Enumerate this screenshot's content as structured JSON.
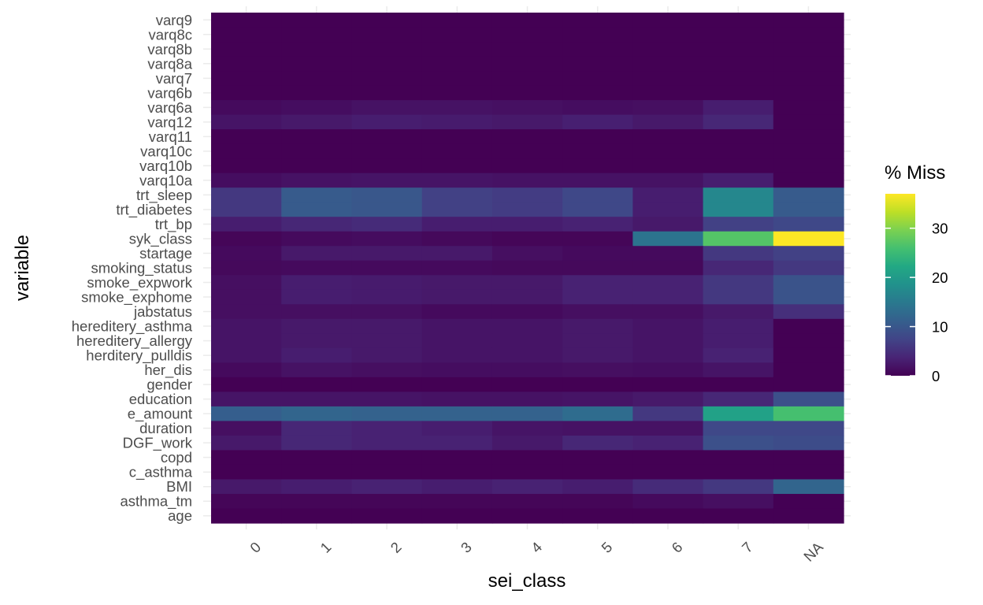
{
  "chart_data": {
    "type": "heatmap",
    "xlabel": "sei_class",
    "ylabel": "variable",
    "x_categories": [
      "0",
      "1",
      "2",
      "3",
      "4",
      "5",
      "6",
      "7",
      "NA"
    ],
    "y_categories": [
      "varq9",
      "varq8c",
      "varq8b",
      "varq8a",
      "varq7",
      "varq6b",
      "varq6a",
      "varq12",
      "varq11",
      "varq10c",
      "varq10b",
      "varq10a",
      "trt_sleep",
      "trt_diabetes",
      "trt_bp",
      "syk_class",
      "startage",
      "smoking_status",
      "smoke_expwork",
      "smoke_exphome",
      "jabstatus",
      "hereditery_asthma",
      "hereditery_allergy",
      "herditery_pulldis",
      "her_dis",
      "gender",
      "education",
      "e_amount",
      "duration",
      "DGF_work",
      "copd",
      "c_asthma",
      "BMI",
      "asthma_tm",
      "age"
    ],
    "values": [
      [
        0,
        0,
        0,
        0,
        0,
        0,
        0,
        0,
        0
      ],
      [
        0,
        0,
        0,
        0,
        0,
        0,
        0,
        0,
        0
      ],
      [
        0,
        0,
        0,
        0,
        0,
        0,
        0,
        0,
        0
      ],
      [
        0,
        0,
        0,
        0,
        0,
        0,
        0,
        0,
        0
      ],
      [
        0,
        0,
        0,
        0,
        0,
        0,
        0,
        0,
        0
      ],
      [
        0,
        0,
        0,
        0,
        0,
        0,
        0,
        0,
        0
      ],
      [
        1,
        1.3,
        1.8,
        1.8,
        1.6,
        1.3,
        1.5,
        3,
        0
      ],
      [
        2,
        2.5,
        3,
        2.8,
        2.5,
        3.2,
        2.5,
        4,
        0
      ],
      [
        0,
        0,
        0,
        0,
        0,
        0,
        0,
        0,
        0
      ],
      [
        0,
        0,
        0,
        0,
        0,
        0,
        0,
        0,
        0
      ],
      [
        0,
        0,
        0,
        0,
        0,
        0,
        0,
        0,
        0
      ],
      [
        1.3,
        1.8,
        2,
        2,
        1.8,
        1.8,
        1.8,
        3,
        0
      ],
      [
        6,
        10.5,
        10,
        7,
        6.5,
        8,
        3,
        17,
        10.5
      ],
      [
        6,
        10.5,
        10,
        7,
        6.5,
        8,
        3,
        17,
        10.5
      ],
      [
        3,
        4,
        4.5,
        3,
        3,
        3.5,
        2.5,
        7,
        8
      ],
      [
        0.5,
        1,
        1.2,
        0.8,
        0.5,
        0.5,
        14,
        27,
        37
      ],
      [
        1,
        2.5,
        2.5,
        2.5,
        1.5,
        1,
        1,
        6,
        7
      ],
      [
        0.8,
        1,
        1,
        1,
        0.8,
        0.8,
        0.8,
        4,
        6
      ],
      [
        1.5,
        3,
        2.8,
        2.5,
        2.5,
        3.5,
        3.5,
        6,
        9.5
      ],
      [
        1.5,
        3,
        2.8,
        2.5,
        2.5,
        3.5,
        3.5,
        6,
        9.5
      ],
      [
        1.5,
        1.5,
        1.5,
        1,
        1,
        1.5,
        1.5,
        2.5,
        5
      ],
      [
        2,
        2.5,
        2.5,
        2,
        2,
        2.5,
        2,
        3,
        0
      ],
      [
        2,
        2.5,
        2.5,
        2,
        2,
        2.5,
        2,
        3,
        0
      ],
      [
        2,
        3,
        2.5,
        2,
        2,
        2.5,
        2,
        3.5,
        0
      ],
      [
        1,
        1.8,
        1.5,
        1.3,
        1.3,
        1.5,
        1.3,
        2,
        0
      ],
      [
        0,
        0,
        0,
        0,
        0,
        0,
        0,
        0,
        0
      ],
      [
        2,
        2,
        2,
        1.8,
        1.8,
        2,
        2.5,
        4,
        9
      ],
      [
        11,
        12,
        11.5,
        11.5,
        11.5,
        13,
        6,
        21,
        26
      ],
      [
        1.5,
        4,
        3.5,
        3,
        2,
        1.8,
        1.8,
        8,
        8
      ],
      [
        2.5,
        4,
        3.5,
        3.5,
        2.5,
        4,
        3.5,
        9,
        8.5
      ],
      [
        0,
        0,
        0,
        0,
        0,
        0,
        0,
        0,
        0
      ],
      [
        0,
        0,
        0,
        0,
        0,
        0,
        0,
        0,
        0
      ],
      [
        2.5,
        3,
        3.5,
        3,
        3.5,
        3,
        4.5,
        6,
        12
      ],
      [
        0.5,
        0.5,
        0.5,
        0.5,
        0.5,
        0.5,
        1,
        1.5,
        0
      ],
      [
        0,
        0,
        0,
        0,
        0,
        0,
        0,
        0,
        0
      ]
    ],
    "legend": {
      "title": "% Miss",
      "min": 0,
      "max": 37,
      "ticks": [
        0,
        10,
        20,
        30
      ],
      "placement": "right"
    },
    "colors": {
      "scale": [
        "#440154",
        "#482475",
        "#414487",
        "#355f8d",
        "#2a788e",
        "#21918c",
        "#22a884",
        "#44bf70",
        "#7ad151",
        "#bddf26",
        "#fde725"
      ],
      "grid": "#ebebeb"
    }
  }
}
